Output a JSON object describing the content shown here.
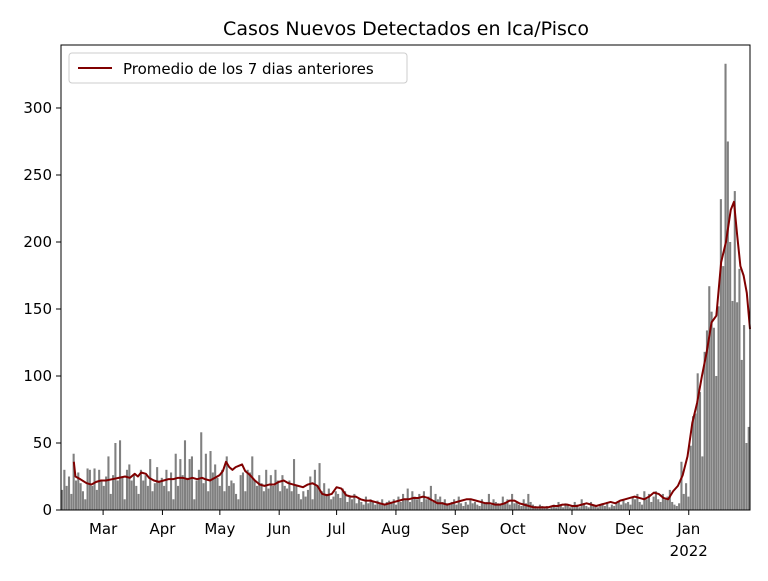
{
  "chart_data": {
    "type": "bar",
    "title": "Casos Nuevos Detectados en Ica/Pisco",
    "xlabel": "",
    "ylabel": "",
    "ylim": [
      0,
      347
    ],
    "x_range_days": [
      0,
      360
    ],
    "yticks": [
      0,
      50,
      100,
      150,
      200,
      250,
      300
    ],
    "x_ticks": [
      {
        "day": 22,
        "label": "Mar"
      },
      {
        "day": 53,
        "label": "Apr"
      },
      {
        "day": 83,
        "label": "May"
      },
      {
        "day": 114,
        "label": "Jun"
      },
      {
        "day": 144,
        "label": "Jul"
      },
      {
        "day": 175,
        "label": "Aug"
      },
      {
        "day": 206,
        "label": "Sep"
      },
      {
        "day": 236,
        "label": "Oct"
      },
      {
        "day": 267,
        "label": "Nov"
      },
      {
        "day": 297,
        "label": "Dec"
      },
      {
        "day": 328,
        "label": "Jan",
        "sublabel": "2022"
      }
    ],
    "grid": false,
    "legend": {
      "placement": "top-left",
      "entries": [
        "Promedio de los 7 dias anteriores"
      ]
    },
    "colors": {
      "bars": "#808080",
      "line": "#800000"
    },
    "series": [
      {
        "kind": "bars",
        "values": [
          15,
          30,
          18,
          25,
          12,
          42,
          22,
          28,
          20,
          14,
          8,
          31,
          30,
          18,
          31,
          15,
          30,
          22,
          18,
          25,
          40,
          12,
          26,
          50,
          22,
          52,
          25,
          8,
          30,
          34,
          22,
          26,
          18,
          12,
          30,
          22,
          26,
          18,
          38,
          14,
          20,
          32,
          22,
          24,
          18,
          30,
          14,
          28,
          8,
          42,
          18,
          38,
          26,
          52,
          24,
          38,
          40,
          8,
          22,
          30,
          58,
          20,
          42,
          14,
          44,
          28,
          34,
          24,
          18,
          30,
          14,
          40,
          18,
          22,
          20,
          12,
          8,
          26,
          28,
          14,
          30,
          28,
          40,
          22,
          18,
          26,
          20,
          14,
          30,
          16,
          26,
          18,
          30,
          22,
          14,
          26,
          18,
          16,
          22,
          14,
          38,
          18,
          12,
          8,
          14,
          10,
          15,
          25,
          8,
          30,
          18,
          35,
          14,
          20,
          12,
          16,
          8,
          10,
          14,
          12,
          9,
          16,
          14,
          6,
          10,
          8,
          12,
          5,
          8,
          6,
          4,
          10,
          5,
          8,
          6,
          4,
          7,
          5,
          8,
          4,
          6,
          7,
          5,
          8,
          4,
          10,
          6,
          12,
          8,
          16,
          6,
          14,
          10,
          8,
          12,
          6,
          14,
          8,
          10,
          18,
          6,
          12,
          8,
          10,
          6,
          8,
          5,
          4,
          6,
          8,
          4,
          10,
          5,
          3,
          6,
          4,
          8,
          5,
          6,
          4,
          3,
          8,
          5,
          6,
          12,
          4,
          8,
          6,
          5,
          4,
          10,
          6,
          8,
          4,
          12,
          5,
          6,
          4,
          3,
          8,
          5,
          12,
          6,
          4,
          3,
          2,
          4,
          3,
          2,
          3,
          1,
          2,
          4,
          2,
          6,
          3,
          2,
          5,
          4,
          2,
          3,
          6,
          4,
          2,
          8,
          5,
          3,
          2,
          6,
          4,
          3,
          2,
          4,
          5,
          3,
          6,
          2,
          4,
          3,
          5,
          6,
          4,
          8,
          5,
          6,
          4,
          10,
          8,
          12,
          6,
          4,
          14,
          8,
          12,
          6,
          10,
          14,
          8,
          6,
          12,
          8,
          10,
          15,
          6,
          4,
          3,
          5,
          36,
          12,
          20,
          10,
          48,
          70,
          72,
          102,
          88,
          40,
          118,
          134,
          167,
          148,
          136,
          100,
          152,
          232,
          182,
          333,
          275,
          200,
          156,
          238,
          155,
          180,
          112,
          138,
          50,
          62
        ],
        "start_day": 0
      },
      {
        "kind": "line",
        "name": "Promedio de los 7 dias anteriores",
        "points": [
          [
            8,
            36
          ],
          [
            9,
            25
          ],
          [
            12,
            23
          ],
          [
            16,
            20
          ],
          [
            19,
            19
          ],
          [
            22,
            21
          ],
          [
            25,
            22
          ],
          [
            28,
            22
          ],
          [
            32,
            23
          ],
          [
            36,
            24
          ],
          [
            40,
            25
          ],
          [
            43,
            24
          ],
          [
            46,
            27
          ],
          [
            48,
            25
          ],
          [
            50,
            28
          ],
          [
            53,
            27
          ],
          [
            55,
            24
          ],
          [
            58,
            22
          ],
          [
            61,
            21
          ],
          [
            64,
            22
          ],
          [
            67,
            23
          ],
          [
            70,
            23
          ],
          [
            73,
            24
          ],
          [
            76,
            24
          ],
          [
            79,
            23
          ],
          [
            82,
            24
          ],
          [
            85,
            23
          ],
          [
            88,
            24
          ],
          [
            90,
            23
          ],
          [
            93,
            22
          ],
          [
            96,
            24
          ],
          [
            99,
            26
          ],
          [
            101,
            29
          ],
          [
            103,
            36
          ],
          [
            105,
            32
          ],
          [
            107,
            30
          ],
          [
            109,
            32
          ],
          [
            111,
            33
          ],
          [
            113,
            34
          ],
          [
            115,
            29
          ],
          [
            118,
            26
          ],
          [
            121,
            22
          ],
          [
            124,
            19
          ],
          [
            127,
            18
          ],
          [
            130,
            19
          ],
          [
            133,
            19
          ],
          [
            136,
            21
          ],
          [
            139,
            22
          ],
          [
            142,
            20
          ],
          [
            145,
            19
          ],
          [
            148,
            18
          ],
          [
            151,
            17
          ],
          [
            154,
            19
          ],
          [
            157,
            20
          ],
          [
            160,
            18
          ],
          [
            163,
            12
          ],
          [
            166,
            11
          ],
          [
            169,
            12
          ],
          [
            172,
            17
          ],
          [
            175,
            16
          ],
          [
            178,
            11
          ],
          [
            181,
            10
          ],
          [
            184,
            10
          ],
          [
            187,
            8
          ],
          [
            190,
            7
          ],
          [
            193,
            7
          ],
          [
            196,
            6
          ],
          [
            199,
            5
          ],
          [
            202,
            4
          ],
          [
            205,
            5
          ],
          [
            208,
            6
          ],
          [
            211,
            7
          ],
          [
            214,
            8
          ],
          [
            217,
            8
          ],
          [
            220,
            9
          ],
          [
            223,
            9
          ],
          [
            226,
            10
          ],
          [
            229,
            9
          ],
          [
            232,
            7
          ],
          [
            235,
            5
          ],
          [
            238,
            5
          ],
          [
            241,
            4
          ],
          [
            244,
            5
          ],
          [
            247,
            6
          ],
          [
            250,
            7
          ],
          [
            253,
            8
          ],
          [
            256,
            8
          ],
          [
            259,
            7
          ],
          [
            262,
            6
          ],
          [
            265,
            5
          ],
          [
            268,
            5
          ],
          [
            271,
            4
          ],
          [
            274,
            4
          ],
          [
            277,
            5
          ],
          [
            280,
            7
          ],
          [
            283,
            7
          ],
          [
            286,
            5
          ],
          [
            289,
            4
          ],
          [
            292,
            3
          ],
          [
            295,
            2
          ],
          [
            298,
            2
          ],
          [
            301,
            2
          ],
          [
            304,
            2
          ],
          [
            307,
            3
          ],
          [
            310,
            3
          ],
          [
            313,
            4
          ],
          [
            316,
            4
          ],
          [
            319,
            3
          ],
          [
            322,
            3
          ],
          [
            325,
            4
          ],
          [
            328,
            5
          ],
          [
            331,
            4
          ],
          [
            334,
            3
          ],
          [
            337,
            4
          ],
          [
            340,
            5
          ],
          [
            343,
            6
          ],
          [
            346,
            5
          ],
          [
            349,
            7
          ],
          [
            352,
            8
          ],
          [
            355,
            9
          ],
          [
            358,
            10
          ],
          [
            361,
            9
          ],
          [
            364,
            8
          ],
          [
            367,
            10
          ],
          [
            370,
            13
          ],
          [
            373,
            12
          ],
          [
            376,
            9
          ],
          [
            379,
            8
          ],
          [
            382,
            14
          ],
          [
            385,
            18
          ],
          [
            388,
            26
          ],
          [
            391,
            40
          ],
          [
            394,
            65
          ],
          [
            397,
            80
          ],
          [
            400,
            100
          ],
          [
            403,
            118
          ],
          [
            406,
            140
          ],
          [
            409,
            145
          ],
          [
            412,
            185
          ],
          [
            415,
            200
          ],
          [
            418,
            224
          ],
          [
            420,
            230
          ],
          [
            422,
            205
          ],
          [
            424,
            182
          ],
          [
            426,
            175
          ],
          [
            428,
            162
          ],
          [
            430,
            135
          ]
        ]
      }
    ]
  }
}
